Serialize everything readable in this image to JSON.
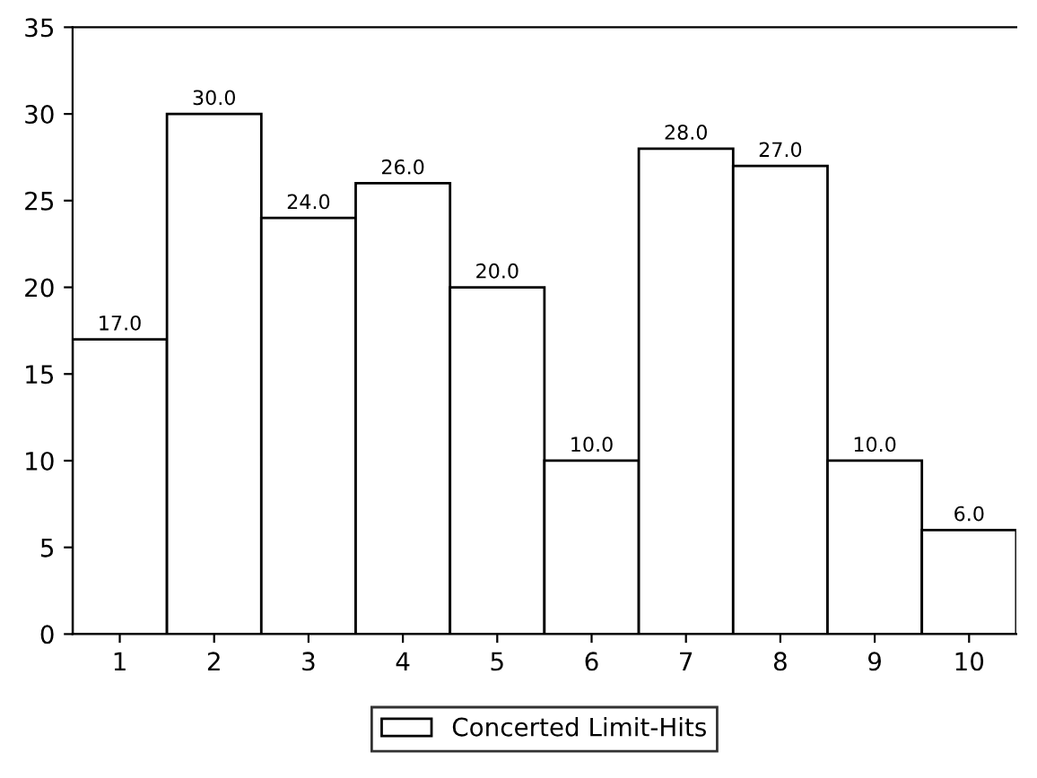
{
  "chart_data": {
    "type": "bar",
    "categories": [
      "1",
      "2",
      "3",
      "4",
      "5",
      "6",
      "7",
      "8",
      "9",
      "10"
    ],
    "series": [
      {
        "name": "Concerted Limit-Hits",
        "color": "#ffffff",
        "values": [
          17,
          30,
          24,
          26,
          20,
          10,
          28,
          27,
          10,
          6
        ],
        "value_labels": [
          "17.0",
          "30.0",
          "24.0",
          "26.0",
          "20.0",
          "10.0",
          "28.0",
          "27.0",
          "10.0",
          "6.0"
        ]
      }
    ],
    "ylim": [
      0,
      35
    ],
    "yticks": [
      0,
      5,
      10,
      15,
      20,
      25,
      30,
      35
    ],
    "grid": false,
    "legend": "bottom"
  }
}
